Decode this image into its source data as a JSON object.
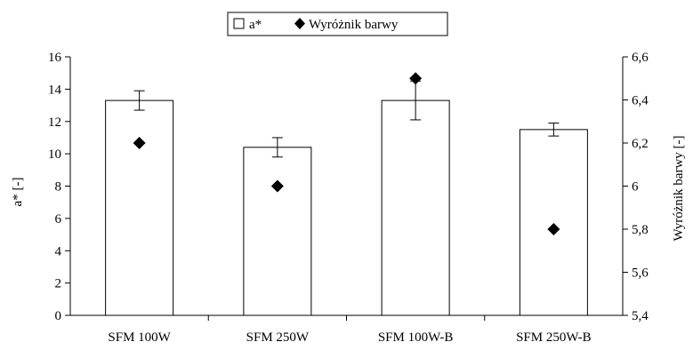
{
  "chart_data": {
    "type": "bar",
    "categories": [
      "SFM 100W",
      "SFM 250W",
      "SFM 100W-B",
      "SFM 250W-B"
    ],
    "series": [
      {
        "name": "a*",
        "kind": "bar",
        "axis": "left",
        "values": [
          13.3,
          10.4,
          13.3,
          11.5
        ],
        "error": [
          0.6,
          0.6,
          1.2,
          0.4
        ],
        "fill": "#ffffff",
        "stroke": "#000000"
      },
      {
        "name": "Wyróżnik barwy",
        "kind": "scatter",
        "marker": "diamond",
        "axis": "right",
        "values": [
          6.2,
          6.0,
          6.5,
          5.8
        ],
        "fill": "#000000"
      }
    ],
    "ylabel": "a* [-]",
    "ylim": [
      0,
      16
    ],
    "yticks": [
      "0",
      "2",
      "4",
      "6",
      "8",
      "10",
      "12",
      "14",
      "16"
    ],
    "y2label": "Wyróżnik barwy [-]",
    "y2lim": [
      5.4,
      6.6
    ],
    "y2ticks": [
      "5,4",
      "5,6",
      "5,8",
      "6",
      "6,2",
      "6,4",
      "6,6"
    ],
    "legend_position": "top-center",
    "grid": false
  }
}
